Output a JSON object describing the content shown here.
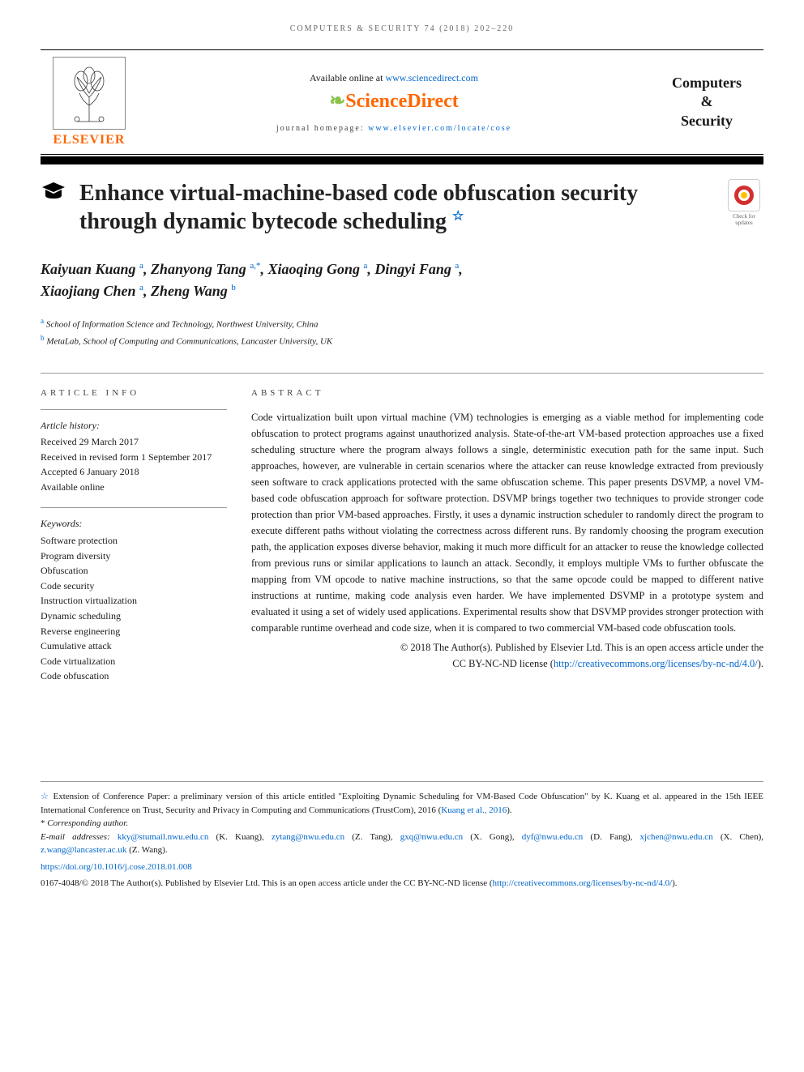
{
  "running_head": {
    "prefix": "COMPUTERS & SECURITY ",
    "citation": "74 (2018) 202–220"
  },
  "masthead": {
    "elsevier_brand": "ELSEVIER",
    "available_text": "Available online at ",
    "available_url": "www.sciencedirect.com",
    "sd_logo": "ScienceDirect",
    "homepage_label": "journal homepage: ",
    "homepage_url": "www.elsevier.com/locate/cose",
    "journal_name_1": "Computers",
    "journal_name_amp": "&",
    "journal_name_2": "Security"
  },
  "title": "Enhance virtual-machine-based code obfuscation security through dynamic bytecode scheduling",
  "check_updates_caption": "Check for updates",
  "authors": [
    {
      "name": "Kaiyuan Kuang",
      "aff": "a"
    },
    {
      "name": "Zhanyong Tang",
      "aff": "a,*"
    },
    {
      "name": "Xiaoqing Gong",
      "aff": "a"
    },
    {
      "name": "Dingyi Fang",
      "aff": "a"
    },
    {
      "name": "Xiaojiang Chen",
      "aff": "a"
    },
    {
      "name": "Zheng Wang",
      "aff": "b"
    }
  ],
  "affiliations": [
    {
      "sup": "a",
      "text": " School of Information Science and Technology, Northwest University, China"
    },
    {
      "sup": "b",
      "text": " MetaLab, School of Computing and Communications, Lancaster University, UK"
    }
  ],
  "article_info_head": "ARTICLE INFO",
  "abstract_head": "ABSTRACT",
  "history_label": "Article history:",
  "history_lines": [
    "Received 29 March 2017",
    "Received in revised form 1 September 2017",
    "Accepted 6 January 2018",
    "Available online"
  ],
  "keywords_label": "Keywords:",
  "keywords": [
    "Software protection",
    "Program diversity",
    "Obfuscation",
    "Code security",
    "Instruction virtualization",
    "Dynamic scheduling",
    "Reverse engineering",
    "Cumulative attack",
    "Code virtualization",
    "Code obfuscation"
  ],
  "abstract": "Code virtualization built upon virtual machine (VM) technologies is emerging as a viable method for implementing code obfuscation to protect programs against unauthorized analysis. State-of-the-art VM-based protection approaches use a fixed scheduling structure where the program always follows a single, deterministic execution path for the same input. Such approaches, however, are vulnerable in certain scenarios where the attacker can reuse knowledge extracted from previously seen software to crack applications protected with the same obfuscation scheme. This paper presents DSVMP, a novel VM-based code obfuscation approach for software protection. DSVMP brings together two techniques to provide stronger code protection than prior VM-based approaches. Firstly, it uses a dynamic instruction scheduler to randomly direct the program to execute different paths without violating the correctness across different runs. By randomly choosing the program execution path, the application exposes diverse behavior, making it much more difficult for an attacker to reuse the knowledge collected from previous runs or similar applications to launch an attack. Secondly, it employs multiple VMs to further obfuscate the mapping from VM opcode to native machine instructions, so that the same opcode could be mapped to different native instructions at runtime, making code analysis even harder. We have implemented DSVMP in a prototype system and evaluated it using a set of widely used applications. Experimental results show that DSVMP provides stronger protection with comparable runtime overhead and code size, when it is compared to two commercial VM-based code obfuscation tools.",
  "copyright_line1": "© 2018 The Author(s). Published by Elsevier Ltd. This is an open access article under the",
  "copyright_line2_prefix": "CC BY-NC-ND license (",
  "copyright_url": "http://creativecommons.org/licenses/by-nc-nd/4.0/",
  "copyright_line2_suffix": ").",
  "footer": {
    "extension_note": "Extension of Conference Paper: a preliminary version of this article entitled \"Exploiting Dynamic Scheduling for VM-Based Code Obfuscation\" by K. Kuang et al. appeared in the 15th IEEE International Conference on Trust, Security and Privacy in Computing and Communications (TrustCom), 2016 (",
    "extension_cite": "Kuang et al., 2016",
    "extension_suffix": ").",
    "corresponding": "Corresponding author.",
    "emails_label": "E-mail addresses: ",
    "emails": [
      {
        "email": "kky@stumail.nwu.edu.cn",
        "who": " (K. Kuang), "
      },
      {
        "email": "zytang@nwu.edu.cn",
        "who": " (Z. Tang), "
      },
      {
        "email": "gxq@nwu.edu.cn",
        "who": " (X. Gong), "
      },
      {
        "email": "dyf@nwu.edu.cn",
        "who": " (D. Fang), "
      },
      {
        "email": "xjchen@nwu.edu.cn",
        "who": " (X. Chen), "
      },
      {
        "email": "z.wang@lancaster.ac.uk",
        "who": " (Z. Wang)."
      }
    ],
    "doi": "https://doi.org/10.1016/j.cose.2018.01.008",
    "issn_line": "0167-4048/© 2018 The Author(s). Published by Elsevier Ltd. This is an open access article under the CC BY-NC-ND license (",
    "issn_url": "http://creativecommons.org/licenses/by-nc-nd/4.0/",
    "issn_suffix": ")."
  },
  "colors": {
    "link": "#0066cc",
    "orange": "#ff6600",
    "text": "#1a1a1a",
    "border": "#999999"
  }
}
